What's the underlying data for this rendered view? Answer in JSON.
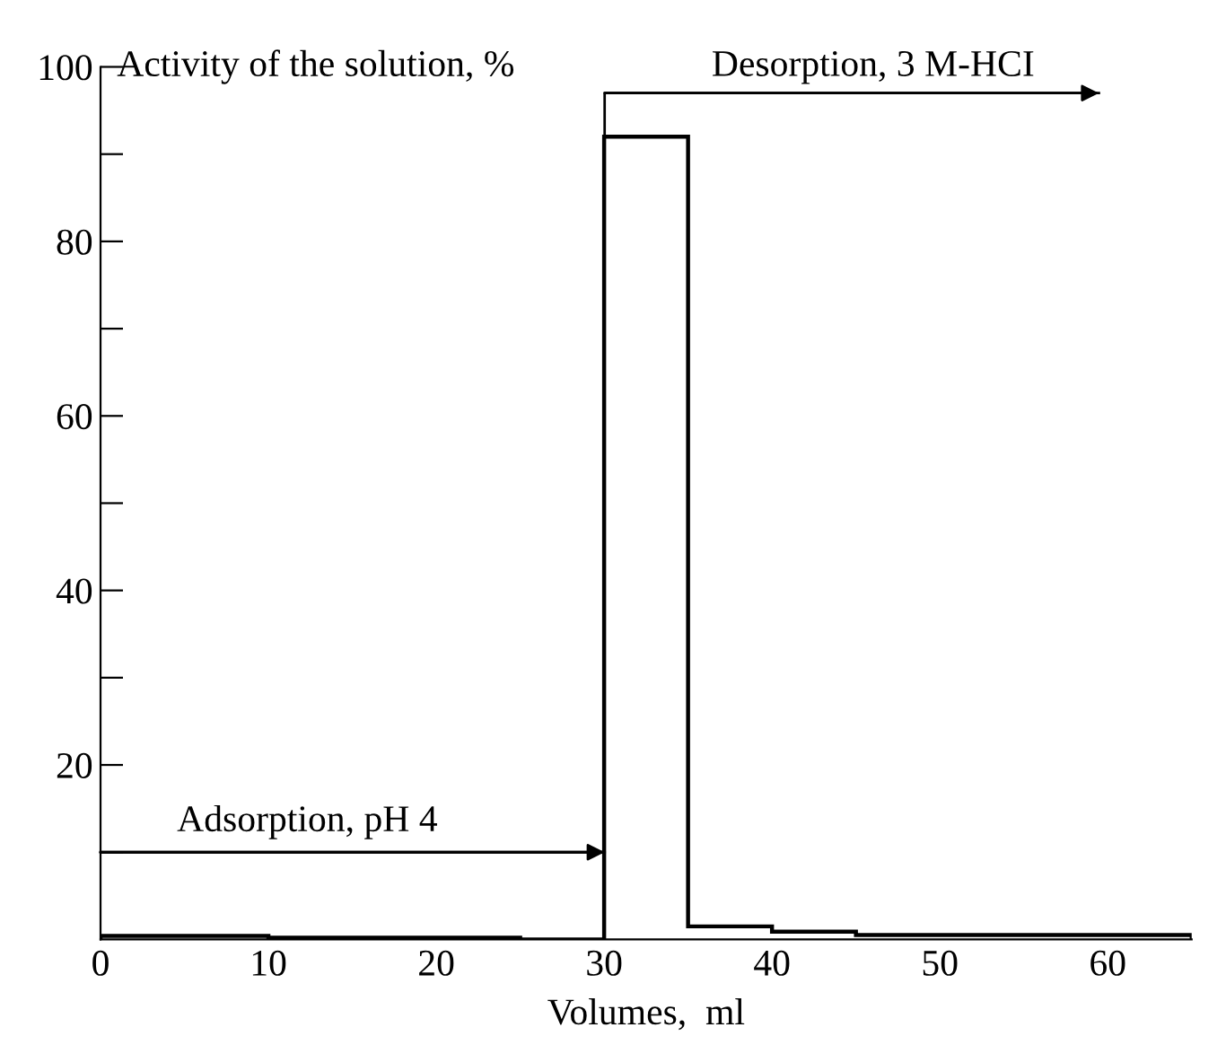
{
  "chart_data": {
    "type": "histogram",
    "ylabel": "Activity of the solution, %",
    "xlabel": "Volumes,  ml",
    "bins": [
      0,
      10,
      25,
      30,
      35,
      40,
      45,
      50,
      65
    ],
    "values": [
      0.4,
      0.2,
      0,
      92,
      1.5,
      0.9,
      0.5,
      0.5
    ],
    "color": "#000000",
    "xlim": [
      0,
      65
    ],
    "ylim": [
      0,
      100
    ],
    "xticks": [
      0,
      10,
      20,
      30,
      40,
      50,
      60
    ],
    "yticks": [
      {
        "value": 10,
        "label": null
      },
      20,
      {
        "value": 30,
        "label": null
      },
      40,
      {
        "value": 50,
        "label": null
      },
      60,
      {
        "value": 70,
        "label": null
      },
      80,
      {
        "value": 90,
        "label": null
      },
      100
    ],
    "annotations": [
      "Adsorption, pH 4",
      "Desorption, 3 M-HCI"
    ],
    "grid": false,
    "legend": false
  }
}
